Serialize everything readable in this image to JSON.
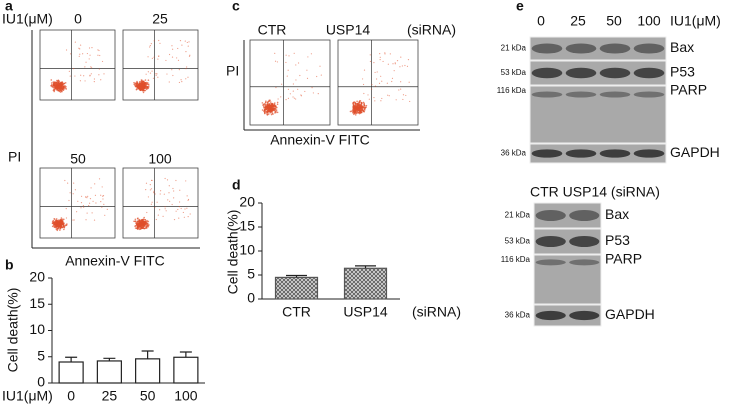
{
  "panel_a": {
    "letter": "a",
    "dose_label": "IU1(μM)",
    "doses": [
      "0",
      "25",
      "50",
      "100"
    ],
    "y_label": "PI",
    "x_label": "Annexin-V FITC"
  },
  "panel_c": {
    "letter": "c",
    "groups": [
      "CTR",
      "USP14"
    ],
    "group_note": "(siRNA)",
    "y_label": "PI",
    "x_label": "Annexin-V FITC"
  },
  "chart_data": [
    {
      "type": "bar",
      "letter": "b",
      "categories": [
        "0",
        "25",
        "50",
        "100"
      ],
      "values": [
        4.0,
        4.2,
        4.6,
        4.9
      ],
      "errors": [
        0.9,
        0.5,
        1.5,
        1.0
      ],
      "ylim": [
        0,
        20
      ],
      "yticks": [
        0,
        5,
        10,
        15,
        20
      ],
      "y_label": "Cell death(%)",
      "x_label": "IU1(μM)",
      "color": "#ffffff"
    },
    {
      "type": "bar",
      "letter": "d",
      "categories": [
        "CTR",
        "USP14"
      ],
      "values": [
        4.5,
        6.4
      ],
      "errors": [
        0.4,
        0.5
      ],
      "ylim": [
        0,
        20
      ],
      "yticks": [
        0,
        5,
        10,
        15,
        20
      ],
      "y_label": "Cell death(%)",
      "x_label": "(siRNA)",
      "color": "#555555",
      "hatch": "crosshatch"
    }
  ],
  "panel_e": {
    "letter": "e",
    "dose_label": "IU1(μM)",
    "doses": [
      "0",
      "25",
      "50",
      "100"
    ],
    "blot1": {
      "rows": [
        {
          "kda": "21 kDa",
          "protein": "Bax"
        },
        {
          "kda": "53 kDa",
          "protein": "P53"
        },
        {
          "kda": "116 kDa",
          "protein": "PARP"
        },
        {
          "kda": "36 kDa",
          "protein": "GAPDH"
        }
      ]
    },
    "blot2_header": "CTR USP14  (siRNA)",
    "blot2": {
      "rows": [
        {
          "kda": "21 kDa",
          "protein": "Bax"
        },
        {
          "kda": "53 kDa",
          "protein": "P53"
        },
        {
          "kda": "116 kDa",
          "protein": "PARP"
        },
        {
          "kda": "36 kDa",
          "protein": "GAPDH"
        }
      ]
    }
  }
}
